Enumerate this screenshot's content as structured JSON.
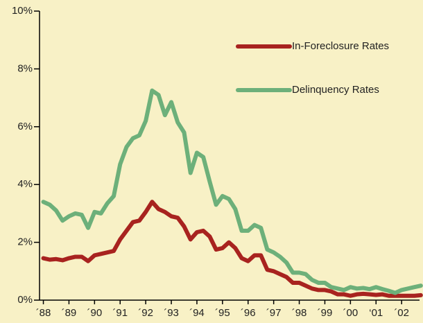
{
  "chart_data": {
    "type": "line",
    "x": [
      1988,
      1988.25,
      1988.5,
      1988.75,
      1989,
      1989.25,
      1989.5,
      1989.75,
      1990,
      1990.25,
      1990.5,
      1990.75,
      1991,
      1991.25,
      1991.5,
      1991.75,
      1992,
      1992.25,
      1992.5,
      1992.75,
      1993,
      1993.25,
      1993.5,
      1993.75,
      1994,
      1994.25,
      1994.5,
      1994.75,
      1995,
      1995.25,
      1995.5,
      1995.75,
      1996,
      1996.25,
      1996.5,
      1996.75,
      1997,
      1997.25,
      1997.5,
      1997.75,
      1998,
      1998.25,
      1998.5,
      1998.75,
      1999,
      1999.25,
      1999.5,
      1999.75,
      2000,
      2000.25,
      2000.5,
      2000.75,
      2001,
      2001.25,
      2001.5,
      2001.75,
      2002,
      2002.25,
      2002.5,
      2002.75
    ],
    "series": [
      {
        "name": "In-Foreclosure Rates",
        "color": "#a8231f",
        "values": [
          1.45,
          1.4,
          1.42,
          1.38,
          1.45,
          1.5,
          1.5,
          1.35,
          1.55,
          1.6,
          1.65,
          1.7,
          2.1,
          2.4,
          2.7,
          2.75,
          3.05,
          3.4,
          3.15,
          3.05,
          2.9,
          2.85,
          2.55,
          2.1,
          2.35,
          2.4,
          2.2,
          1.75,
          1.8,
          2.0,
          1.8,
          1.45,
          1.35,
          1.55,
          1.55,
          1.05,
          1.0,
          0.9,
          0.8,
          0.6,
          0.6,
          0.5,
          0.4,
          0.35,
          0.35,
          0.3,
          0.2,
          0.2,
          0.15,
          0.2,
          0.22,
          0.2,
          0.18,
          0.2,
          0.15,
          0.15,
          0.15,
          0.15,
          0.15,
          0.17
        ]
      },
      {
        "name": "Delinquency Rates",
        "color": "#6db07a",
        "values": [
          3.4,
          3.3,
          3.1,
          2.75,
          2.9,
          3.0,
          2.95,
          2.5,
          3.05,
          3.0,
          3.35,
          3.6,
          4.7,
          5.3,
          5.6,
          5.7,
          6.2,
          7.25,
          7.1,
          6.4,
          6.85,
          6.15,
          5.8,
          4.4,
          5.1,
          4.95,
          4.1,
          3.3,
          3.6,
          3.5,
          3.15,
          2.4,
          2.4,
          2.6,
          2.5,
          1.75,
          1.65,
          1.5,
          1.3,
          0.95,
          0.95,
          0.9,
          0.7,
          0.6,
          0.6,
          0.45,
          0.4,
          0.35,
          0.45,
          0.4,
          0.42,
          0.38,
          0.45,
          0.38,
          0.32,
          0.25,
          0.35,
          0.4,
          0.45,
          0.5
        ]
      }
    ],
    "xlim": [
      1987.85,
      2002.7
    ],
    "xticks": [
      {
        "value": 1988,
        "label": "´88"
      },
      {
        "value": 1989,
        "label": "´89"
      },
      {
        "value": 1990,
        "label": "´90"
      },
      {
        "value": 1991,
        "label": "´91"
      },
      {
        "value": 1992,
        "label": "´92"
      },
      {
        "value": 1993,
        "label": "´93"
      },
      {
        "value": 1994,
        "label": "´94"
      },
      {
        "value": 1995,
        "label": "´95"
      },
      {
        "value": 1996,
        "label": "´96"
      },
      {
        "value": 1997,
        "label": "´97"
      },
      {
        "value": 1998,
        "label": "´98"
      },
      {
        "value": 1999,
        "label": "´99"
      },
      {
        "value": 2000,
        "label": "´00"
      },
      {
        "value": 2001,
        "label": "‘01"
      },
      {
        "value": 2002,
        "label": "´02"
      }
    ],
    "ylim": [
      0,
      10
    ],
    "yticks": [
      {
        "value": 0,
        "label": "0%"
      },
      {
        "value": 2,
        "label": "2%"
      },
      {
        "value": 4,
        "label": "4%"
      },
      {
        "value": 6,
        "label": "6%"
      },
      {
        "value": 8,
        "label": "8%"
      },
      {
        "value": 10,
        "label": "10%"
      }
    ],
    "legend": "upper right"
  }
}
